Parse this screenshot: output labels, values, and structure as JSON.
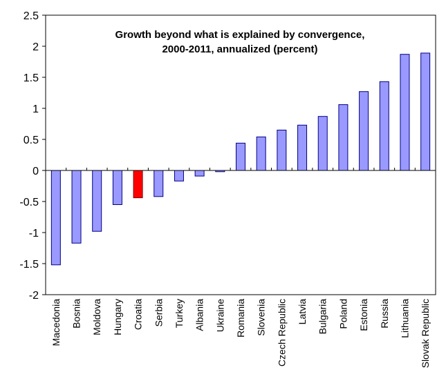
{
  "chart_data": {
    "type": "bar",
    "title_lines": [
      "Growth beyond what is explained by convergence,",
      "2000-2011, annualized (percent)"
    ],
    "categories": [
      "Macedonia",
      "Bosnia",
      "Moldova",
      "Hungary",
      "Croatia",
      "Serbia",
      "Turkey",
      "Albania",
      "Ukraine",
      "Romania",
      "Slovenia",
      "Czech Republic",
      "Latvia",
      "Bulgaria",
      "Poland",
      "Estonia",
      "Russia",
      "Lithuania",
      "Slovak Republic"
    ],
    "values": [
      -1.52,
      -1.17,
      -0.98,
      -0.55,
      -0.44,
      -0.42,
      -0.17,
      -0.09,
      -0.02,
      0.44,
      0.54,
      0.65,
      0.73,
      0.87,
      1.06,
      1.27,
      1.43,
      1.87,
      1.89
    ],
    "highlight_category": "Croatia",
    "ylim": [
      -2,
      2.5
    ],
    "yticks": [
      "-2",
      "-1.5",
      "-1",
      "-0.5",
      "0",
      "0.5",
      "1",
      "1.5",
      "2",
      "2.5"
    ],
    "xlabel": "",
    "ylabel": "",
    "grid": false,
    "legend": "none",
    "colors": {
      "bar_fill": "#9999ff",
      "bar_stroke": "#000080",
      "highlight_fill": "#ff0000",
      "highlight_stroke": "#800000",
      "axis": "#000000"
    }
  }
}
